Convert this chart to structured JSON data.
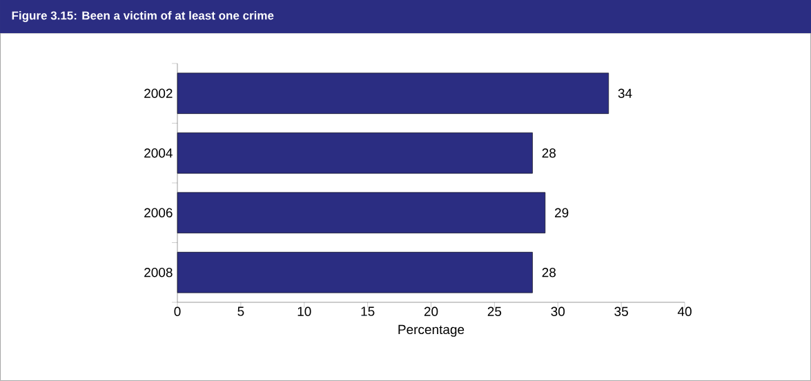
{
  "chart_data": {
    "type": "bar",
    "orientation": "horizontal",
    "title": "Figure 3.15:  Been a victim of at least one crime",
    "categories": [
      "2002",
      "2004",
      "2006",
      "2008"
    ],
    "values": [
      34,
      28,
      29,
      28
    ],
    "color": "#2b2d82",
    "data_labels": true,
    "xlabel": "Percentage",
    "xlim": [
      0,
      40
    ],
    "xticks": [
      0,
      5,
      10,
      15,
      20,
      25,
      30,
      35,
      40
    ]
  }
}
